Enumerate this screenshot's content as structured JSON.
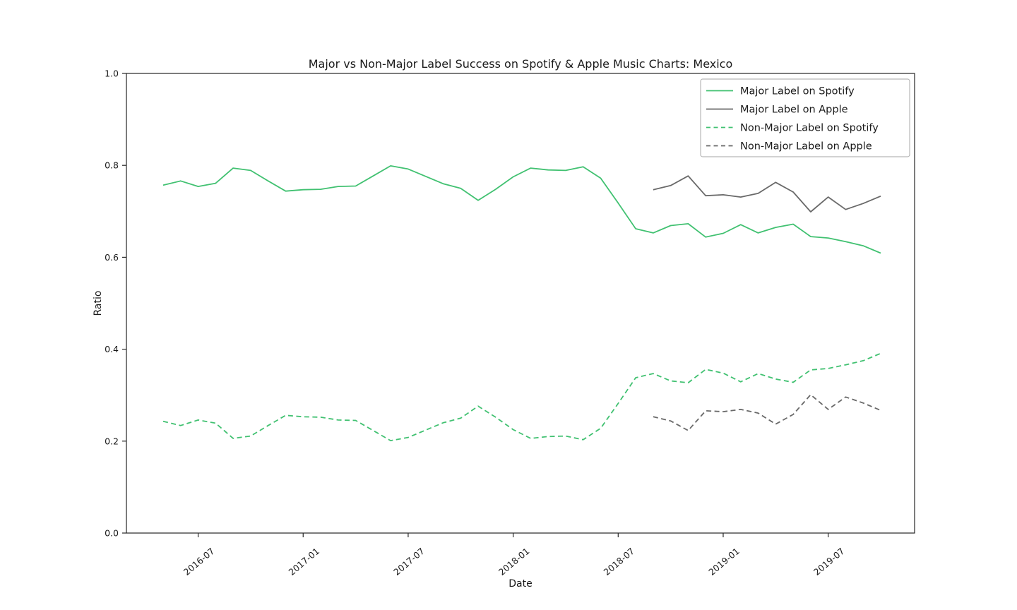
{
  "chart_data": {
    "type": "line",
    "title": "Major vs Non-Major Label Success on Spotify & Apple Music Charts: Mexico",
    "xlabel": "Date",
    "ylabel": "Ratio",
    "ylim": [
      0.0,
      1.0
    ],
    "yticks": [
      0.0,
      0.2,
      0.4,
      0.6,
      0.8,
      1.0
    ],
    "xtick_labels": [
      "2016-07",
      "2017-01",
      "2017-07",
      "2018-01",
      "2018-07",
      "2019-01",
      "2019-07"
    ],
    "xtick_rotation_deg": 40,
    "grid": false,
    "legend_position": "upper right",
    "colors": {
      "spotify_green": "#41c171",
      "apple_gray": "#696969",
      "axis": "#262626",
      "legend_border": "#b7b7b7"
    },
    "x_months": [
      "2016-05",
      "2016-06",
      "2016-07",
      "2016-08",
      "2016-09",
      "2016-10",
      "2016-11",
      "2016-12",
      "2017-01",
      "2017-02",
      "2017-03",
      "2017-04",
      "2017-05",
      "2017-06",
      "2017-07",
      "2017-08",
      "2017-09",
      "2017-10",
      "2017-11",
      "2017-12",
      "2018-01",
      "2018-02",
      "2018-03",
      "2018-04",
      "2018-05",
      "2018-06",
      "2018-07",
      "2018-08",
      "2018-09",
      "2018-10",
      "2018-11",
      "2018-12",
      "2019-01",
      "2019-02",
      "2019-03",
      "2019-04",
      "2019-05",
      "2019-06",
      "2019-07",
      "2019-08",
      "2019-09",
      "2019-10"
    ],
    "series": [
      {
        "name": "Major Label on Spotify",
        "color_key": "spotify_green",
        "style": "solid",
        "start_month": "2016-05",
        "values": [
          0.757,
          0.766,
          0.754,
          0.761,
          0.794,
          0.789,
          0.766,
          0.744,
          0.747,
          0.748,
          0.754,
          0.755,
          0.777,
          0.799,
          0.792,
          0.776,
          0.76,
          0.75,
          0.724,
          0.748,
          0.775,
          0.794,
          0.79,
          0.789,
          0.797,
          0.772,
          0.718,
          0.662,
          0.653,
          0.669,
          0.673,
          0.644,
          0.652,
          0.671,
          0.653,
          0.665,
          0.672,
          0.645,
          0.642,
          0.634,
          0.625,
          0.609
        ]
      },
      {
        "name": "Major Label on Apple",
        "color_key": "apple_gray",
        "style": "solid",
        "start_month": "2018-09",
        "values": [
          0.747,
          0.756,
          0.777,
          0.734,
          0.736,
          0.731,
          0.739,
          0.763,
          0.742,
          0.699,
          0.731,
          0.704,
          0.717,
          0.733
        ]
      },
      {
        "name": "Non-Major Label on Spotify",
        "color_key": "spotify_green",
        "style": "dashed",
        "start_month": "2016-05",
        "values": [
          0.243,
          0.234,
          0.246,
          0.239,
          0.206,
          0.211,
          0.234,
          0.256,
          0.253,
          0.252,
          0.246,
          0.245,
          0.223,
          0.201,
          0.208,
          0.224,
          0.24,
          0.25,
          0.276,
          0.252,
          0.225,
          0.206,
          0.21,
          0.211,
          0.203,
          0.228,
          0.282,
          0.338,
          0.347,
          0.331,
          0.327,
          0.356,
          0.348,
          0.329,
          0.347,
          0.335,
          0.328,
          0.355,
          0.358,
          0.366,
          0.375,
          0.391
        ]
      },
      {
        "name": "Non-Major Label on Apple",
        "color_key": "apple_gray",
        "style": "dashed",
        "start_month": "2018-09",
        "values": [
          0.253,
          0.244,
          0.223,
          0.266,
          0.264,
          0.269,
          0.261,
          0.237,
          0.258,
          0.301,
          0.269,
          0.296,
          0.283,
          0.267
        ]
      }
    ]
  }
}
